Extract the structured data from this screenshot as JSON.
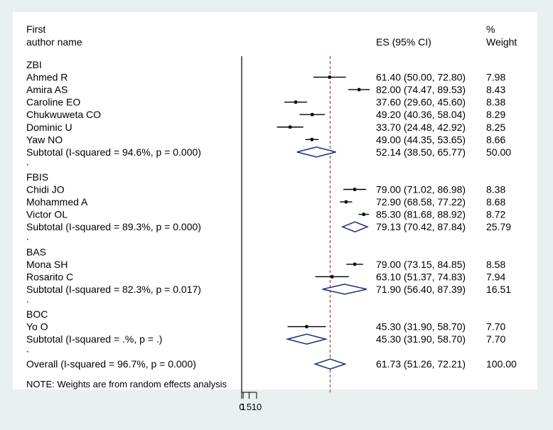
{
  "chart_data": {
    "type": "forest",
    "header": {
      "col1_line1": "First",
      "col1_line2": "author name",
      "es_label": "ES (95% CI)",
      "weight_line1": "%",
      "weight_line2": "Weight"
    },
    "overall_line_value": 61.73,
    "colors": {
      "ci_line": "#000000",
      "point": "#000000",
      "weight_box": "#b0b0b0",
      "diamond": "#1a2e7a",
      "overall_line": "#a0303a",
      "background": "#e8f0f0",
      "panel": "#ffffff"
    },
    "rows": [
      {
        "kind": "group",
        "label": "ZBI"
      },
      {
        "kind": "study",
        "label": "Ahmed R",
        "es": 61.4,
        "lo": 50.0,
        "hi": 72.8,
        "es_text": "61.40 (50.00, 72.80)",
        "w": "7.98"
      },
      {
        "kind": "study",
        "label": "Amira AS",
        "es": 82.0,
        "lo": 74.47,
        "hi": 89.53,
        "es_text": "82.00 (74.47, 89.53)",
        "w": "8.43"
      },
      {
        "kind": "study",
        "label": "Caroline EO",
        "es": 37.6,
        "lo": 29.6,
        "hi": 45.6,
        "es_text": "37.60 (29.60, 45.60)",
        "w": "8.38"
      },
      {
        "kind": "study",
        "label": "Chukwuweta CO",
        "es": 49.2,
        "lo": 40.36,
        "hi": 58.04,
        "es_text": "49.20 (40.36, 58.04)",
        "w": "8.29"
      },
      {
        "kind": "study",
        "label": "Dominic U",
        "es": 33.7,
        "lo": 24.48,
        "hi": 42.92,
        "es_text": "33.70 (24.48, 42.92)",
        "w": "8.25"
      },
      {
        "kind": "study",
        "label": "Yaw NO",
        "es": 49.0,
        "lo": 44.35,
        "hi": 53.65,
        "es_text": "49.00 (44.35, 53.65)",
        "w": "8.66"
      },
      {
        "kind": "subtotal",
        "label": "Subtotal  (I-squared = 94.6%, p = 0.000)",
        "es": 52.14,
        "lo": 38.5,
        "hi": 65.77,
        "es_text": "52.14 (38.50, 65.77)",
        "w": "50.00"
      },
      {
        "kind": "dot",
        "label": "."
      },
      {
        "kind": "group",
        "label": "FBIS"
      },
      {
        "kind": "study",
        "label": "Chidi JO",
        "es": 79.0,
        "lo": 71.02,
        "hi": 86.98,
        "es_text": "79.00 (71.02, 86.98)",
        "w": "8.38"
      },
      {
        "kind": "study",
        "label": "Mohammed A",
        "es": 72.9,
        "lo": 68.58,
        "hi": 77.22,
        "es_text": "72.90 (68.58, 77.22)",
        "w": "8.68"
      },
      {
        "kind": "study",
        "label": "Victor OL",
        "es": 85.3,
        "lo": 81.68,
        "hi": 88.92,
        "es_text": "85.30 (81.68, 88.92)",
        "w": "8.72"
      },
      {
        "kind": "subtotal",
        "label": "Subtotal  (I-squared = 89.3%, p = 0.000)",
        "es": 79.13,
        "lo": 70.42,
        "hi": 87.84,
        "es_text": "79.13 (70.42, 87.84)",
        "w": "25.79"
      },
      {
        "kind": "dot",
        "label": "."
      },
      {
        "kind": "group",
        "label": "BAS"
      },
      {
        "kind": "study",
        "label": "Mona SH",
        "es": 79.0,
        "lo": 73.15,
        "hi": 84.85,
        "es_text": "79.00 (73.15, 84.85)",
        "w": "8.58"
      },
      {
        "kind": "study",
        "label": "Rosarito C",
        "es": 63.1,
        "lo": 51.37,
        "hi": 74.83,
        "es_text": "63.10 (51.37, 74.83)",
        "w": "7.94"
      },
      {
        "kind": "subtotal",
        "label": "Subtotal  (I-squared = 82.3%, p = 0.017)",
        "es": 71.9,
        "lo": 56.4,
        "hi": 87.39,
        "es_text": "71.90 (56.40, 87.39)",
        "w": "16.51"
      },
      {
        "kind": "dot",
        "label": "."
      },
      {
        "kind": "group",
        "label": "BOC"
      },
      {
        "kind": "study",
        "label": "Yo O",
        "es": 45.3,
        "lo": 31.9,
        "hi": 58.7,
        "es_text": "45.30 (31.90, 58.70)",
        "w": "7.70"
      },
      {
        "kind": "subtotal",
        "label": "Subtotal  (I-squared = .%, p = .)",
        "es": 45.3,
        "lo": 31.9,
        "hi": 58.7,
        "es_text": "45.30 (31.90, 58.70)",
        "w": "7.70"
      },
      {
        "kind": "dot",
        "label": "."
      },
      {
        "kind": "overall",
        "label": "Overall  (I-squared = 96.7%, p = 0.000)",
        "es": 61.73,
        "lo": 51.26,
        "hi": 72.21,
        "es_text": "61.73 (51.26, 72.21)",
        "w": "100.00"
      }
    ],
    "note": "NOTE: Weights are from random effects analysis",
    "x_ticks": [
      {
        "value": 0,
        "label": "0"
      },
      {
        "value": 1,
        "label": "1"
      },
      {
        "value": 5,
        "label": "5"
      },
      {
        "value": 10,
        "label": "10"
      }
    ]
  }
}
